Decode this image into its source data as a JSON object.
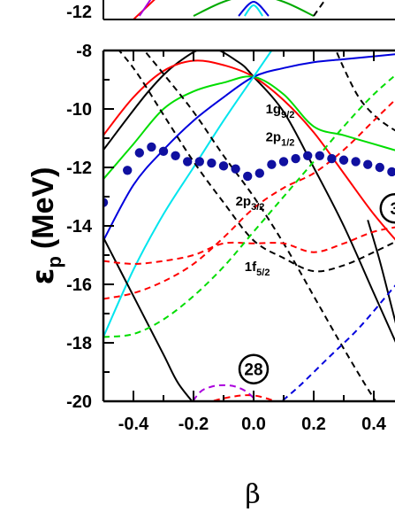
{
  "chart_data": {
    "type": "line",
    "xlabel": "β",
    "ylabel": "ε",
    "ylabel_subscript": "p",
    "ylabel_unit": "(MeV)",
    "xlim": [
      -0.5,
      0.5
    ],
    "ylim": [
      -20,
      -8
    ],
    "x_ticks": [
      -0.4,
      -0.2,
      0.0,
      0.2,
      0.4
    ],
    "x_tick_labels": [
      "-0.4",
      "-0.2",
      "0.0",
      "0.2",
      "0.4"
    ],
    "y_ticks": [
      -20,
      -18,
      -16,
      -14,
      -12,
      -10,
      -8
    ],
    "y_tick_labels": [
      "-20",
      "-18",
      "-16",
      "-14",
      "-12",
      "-10",
      "-8"
    ],
    "top_panel_visible_tick": "-12",
    "level_labels": [
      {
        "base": "1g",
        "sub": "9/2",
        "x": 0.04,
        "y": -10.15
      },
      {
        "base": "2p",
        "sub": "1/2",
        "x": 0.04,
        "y": -11.1
      },
      {
        "base": "2p",
        "sub": "3/2",
        "x": -0.06,
        "y": -13.3
      },
      {
        "base": "1f",
        "sub": "5/2",
        "x": -0.03,
        "y": -15.55
      }
    ],
    "magic_numbers": [
      {
        "label": "28",
        "x": 0.0,
        "y": -18.9
      },
      {
        "label": "3",
        "x": 0.47,
        "y": -13.4
      }
    ],
    "fermi_points": {
      "color": "#1010a0",
      "x": [
        -0.5,
        -0.42,
        -0.38,
        -0.34,
        -0.3,
        -0.26,
        -0.22,
        -0.18,
        -0.14,
        -0.1,
        -0.06,
        -0.02,
        0.02,
        0.06,
        0.1,
        0.14,
        0.18,
        0.22,
        0.26,
        0.3,
        0.34,
        0.38,
        0.42,
        0.46
      ],
      "y": [
        -13.2,
        -12.1,
        -11.5,
        -11.3,
        -11.45,
        -11.6,
        -11.8,
        -11.8,
        -11.85,
        -11.95,
        -12.05,
        -12.3,
        -12.2,
        -11.9,
        -11.8,
        -11.7,
        -11.6,
        -11.6,
        -11.7,
        -11.75,
        -11.8,
        -11.9,
        -12.0,
        -12.15
      ]
    },
    "series": [
      {
        "color": "#000000",
        "dash": false,
        "x": [
          -0.5,
          -0.35,
          -0.25,
          -0.15,
          -0.05,
          0.0,
          0.1,
          0.2,
          0.3,
          0.4,
          0.5
        ],
        "y": [
          -11.4,
          -9.4,
          -8.4,
          -7.9,
          -8.4,
          -8.9,
          -10.1,
          -12.0,
          -14.0,
          -16.3,
          -18.6
        ]
      },
      {
        "color": "#ff0000",
        "dash": false,
        "x": [
          -0.5,
          -0.4,
          -0.3,
          -0.2,
          -0.1,
          0.0,
          0.1,
          0.2,
          0.3,
          0.4,
          0.5
        ],
        "y": [
          -10.9,
          -9.6,
          -8.7,
          -8.35,
          -8.5,
          -8.9,
          -9.7,
          -10.8,
          -12.2,
          -13.6,
          -14.8
        ]
      },
      {
        "color": "#00dd00",
        "dash": false,
        "x": [
          -0.5,
          -0.4,
          -0.3,
          -0.2,
          -0.1,
          0.0,
          0.1,
          0.2,
          0.3,
          0.4,
          0.5
        ],
        "y": [
          -12.4,
          -11.2,
          -10.0,
          -9.4,
          -9.1,
          -8.9,
          -9.5,
          -10.6,
          -10.9,
          -11.2,
          -11.5
        ]
      },
      {
        "color": "#0000dd",
        "dash": false,
        "x": [
          -0.5,
          -0.4,
          -0.3,
          -0.2,
          -0.1,
          0.0,
          0.1,
          0.2,
          0.3,
          0.4,
          0.5
        ],
        "y": [
          -14.5,
          -12.6,
          -11.4,
          -10.4,
          -9.6,
          -8.9,
          -8.6,
          -8.4,
          -8.3,
          -8.2,
          -8.1
        ]
      },
      {
        "color": "#00e5ee",
        "dash": false,
        "x": [
          -0.5,
          -0.4,
          -0.3,
          -0.2,
          -0.1,
          0.0,
          0.1,
          0.15
        ],
        "y": [
          -17.8,
          -15.5,
          -13.6,
          -12.0,
          -10.4,
          -8.9,
          -7.4,
          -6.7
        ]
      },
      {
        "color": "#000000",
        "dash": false,
        "x": [
          -0.5,
          -0.4,
          -0.3,
          -0.25,
          -0.18
        ],
        "y": [
          -14.4,
          -16.4,
          -18.4,
          -19.4,
          -20.3
        ]
      },
      {
        "color": "#000000",
        "dash": false,
        "x": [
          0.38,
          0.42,
          0.46,
          0.5
        ],
        "y": [
          -13.8,
          -15.2,
          -16.8,
          -18.4
        ]
      },
      {
        "color": "#000000",
        "dash": true,
        "x": [
          -0.38,
          -0.3,
          -0.2,
          -0.1,
          0.0,
          0.1,
          0.2,
          0.3,
          0.4,
          0.5
        ],
        "y": [
          -7.8,
          -8.8,
          -10.1,
          -11.6,
          -13.0,
          -14.6,
          -16.4,
          -18.2,
          -19.9,
          -21.4
        ]
      },
      {
        "color": "#000000",
        "dash": true,
        "x": [
          -0.5,
          -0.4,
          -0.3,
          -0.2,
          -0.1,
          0.0,
          0.1,
          0.2,
          0.3,
          0.4,
          0.5
        ],
        "y": [
          -7.4,
          -8.6,
          -10.2,
          -11.8,
          -13.2,
          -14.5,
          -15.1,
          -15.55,
          -15.35,
          -14.9,
          -14.4
        ]
      },
      {
        "color": "#000000",
        "dash": true,
        "x": [
          0.25,
          0.3,
          0.35,
          0.4,
          0.45,
          0.5
        ],
        "y": [
          -7.4,
          -8.6,
          -9.6,
          -10.2,
          -10.6,
          -10.9
        ]
      },
      {
        "color": "#ff0000",
        "dash": true,
        "x": [
          -0.5,
          -0.4,
          -0.3,
          -0.2,
          -0.1,
          0.0,
          0.1,
          0.2,
          0.3,
          0.4,
          0.5
        ],
        "y": [
          -15.2,
          -15.3,
          -15.2,
          -15.0,
          -14.6,
          -14.6,
          -14.6,
          -14.9,
          -14.6,
          -14.2,
          -14.0
        ]
      },
      {
        "color": "#ff0000",
        "dash": true,
        "x": [
          -0.5,
          -0.4,
          -0.3,
          -0.2,
          -0.1,
          0.0,
          0.1,
          0.2,
          0.3,
          0.4,
          0.5
        ],
        "y": [
          -16.5,
          -16.3,
          -15.9,
          -15.3,
          -14.4,
          -13.4,
          -12.7,
          -12.2,
          -11.4,
          -10.4,
          -9.4
        ]
      },
      {
        "color": "#ff0000",
        "dash": true,
        "x": [
          -0.2,
          -0.1,
          0.0,
          0.1
        ],
        "y": [
          -20.2,
          -19.9,
          -19.8,
          -20.1
        ]
      },
      {
        "color": "#00dd00",
        "dash": true,
        "x": [
          -0.5,
          -0.4,
          -0.3,
          -0.2,
          -0.1,
          0.0,
          0.1,
          0.2,
          0.3,
          0.4,
          0.5
        ],
        "y": [
          -17.8,
          -17.7,
          -17.2,
          -16.4,
          -15.4,
          -14.2,
          -13.0,
          -11.8,
          -10.6,
          -9.5,
          -8.6
        ]
      },
      {
        "color": "#0000dd",
        "dash": true,
        "x": [
          0.07,
          0.15,
          0.25,
          0.35,
          0.45,
          0.5
        ],
        "y": [
          -20.2,
          -19.5,
          -18.5,
          -17.5,
          -16.3,
          -15.7
        ]
      },
      {
        "color": "#aa00dd",
        "dash": true,
        "x": [
          -0.22,
          -0.18,
          -0.14,
          -0.1,
          -0.06,
          -0.02,
          0.02
        ],
        "y": [
          -20.3,
          -19.7,
          -19.5,
          -19.45,
          -19.5,
          -19.7,
          -20.1
        ]
      }
    ],
    "top_panel_series": [
      {
        "color": "#ff0000",
        "dash": false,
        "x": [
          -0.4,
          -0.35,
          -0.3
        ],
        "y": [
          -12.4,
          -12.0,
          -11.6
        ]
      },
      {
        "color": "#00aa00",
        "dash": false,
        "x": [
          -0.2,
          -0.1,
          0.0,
          0.1,
          0.2
        ],
        "y": [
          -12.3,
          -11.9,
          -11.7,
          -11.9,
          -12.3
        ]
      },
      {
        "color": "#0000dd",
        "dash": false,
        "x": [
          -0.05,
          0.0,
          0.05
        ],
        "y": [
          -12.3,
          -11.9,
          -12.3
        ]
      },
      {
        "color": "#00e5ee",
        "dash": false,
        "x": [
          -0.03,
          0.0,
          0.03
        ],
        "y": [
          -12.3,
          -12.0,
          -12.3
        ]
      },
      {
        "color": "#aa00dd",
        "dash": false,
        "x": [
          -0.38,
          -0.34
        ],
        "y": [
          -12.3,
          -11.8
        ]
      },
      {
        "color": "#000000",
        "dash": true,
        "x": [
          0.2,
          0.25
        ],
        "y": [
          -12.3,
          -11.7
        ]
      }
    ]
  }
}
